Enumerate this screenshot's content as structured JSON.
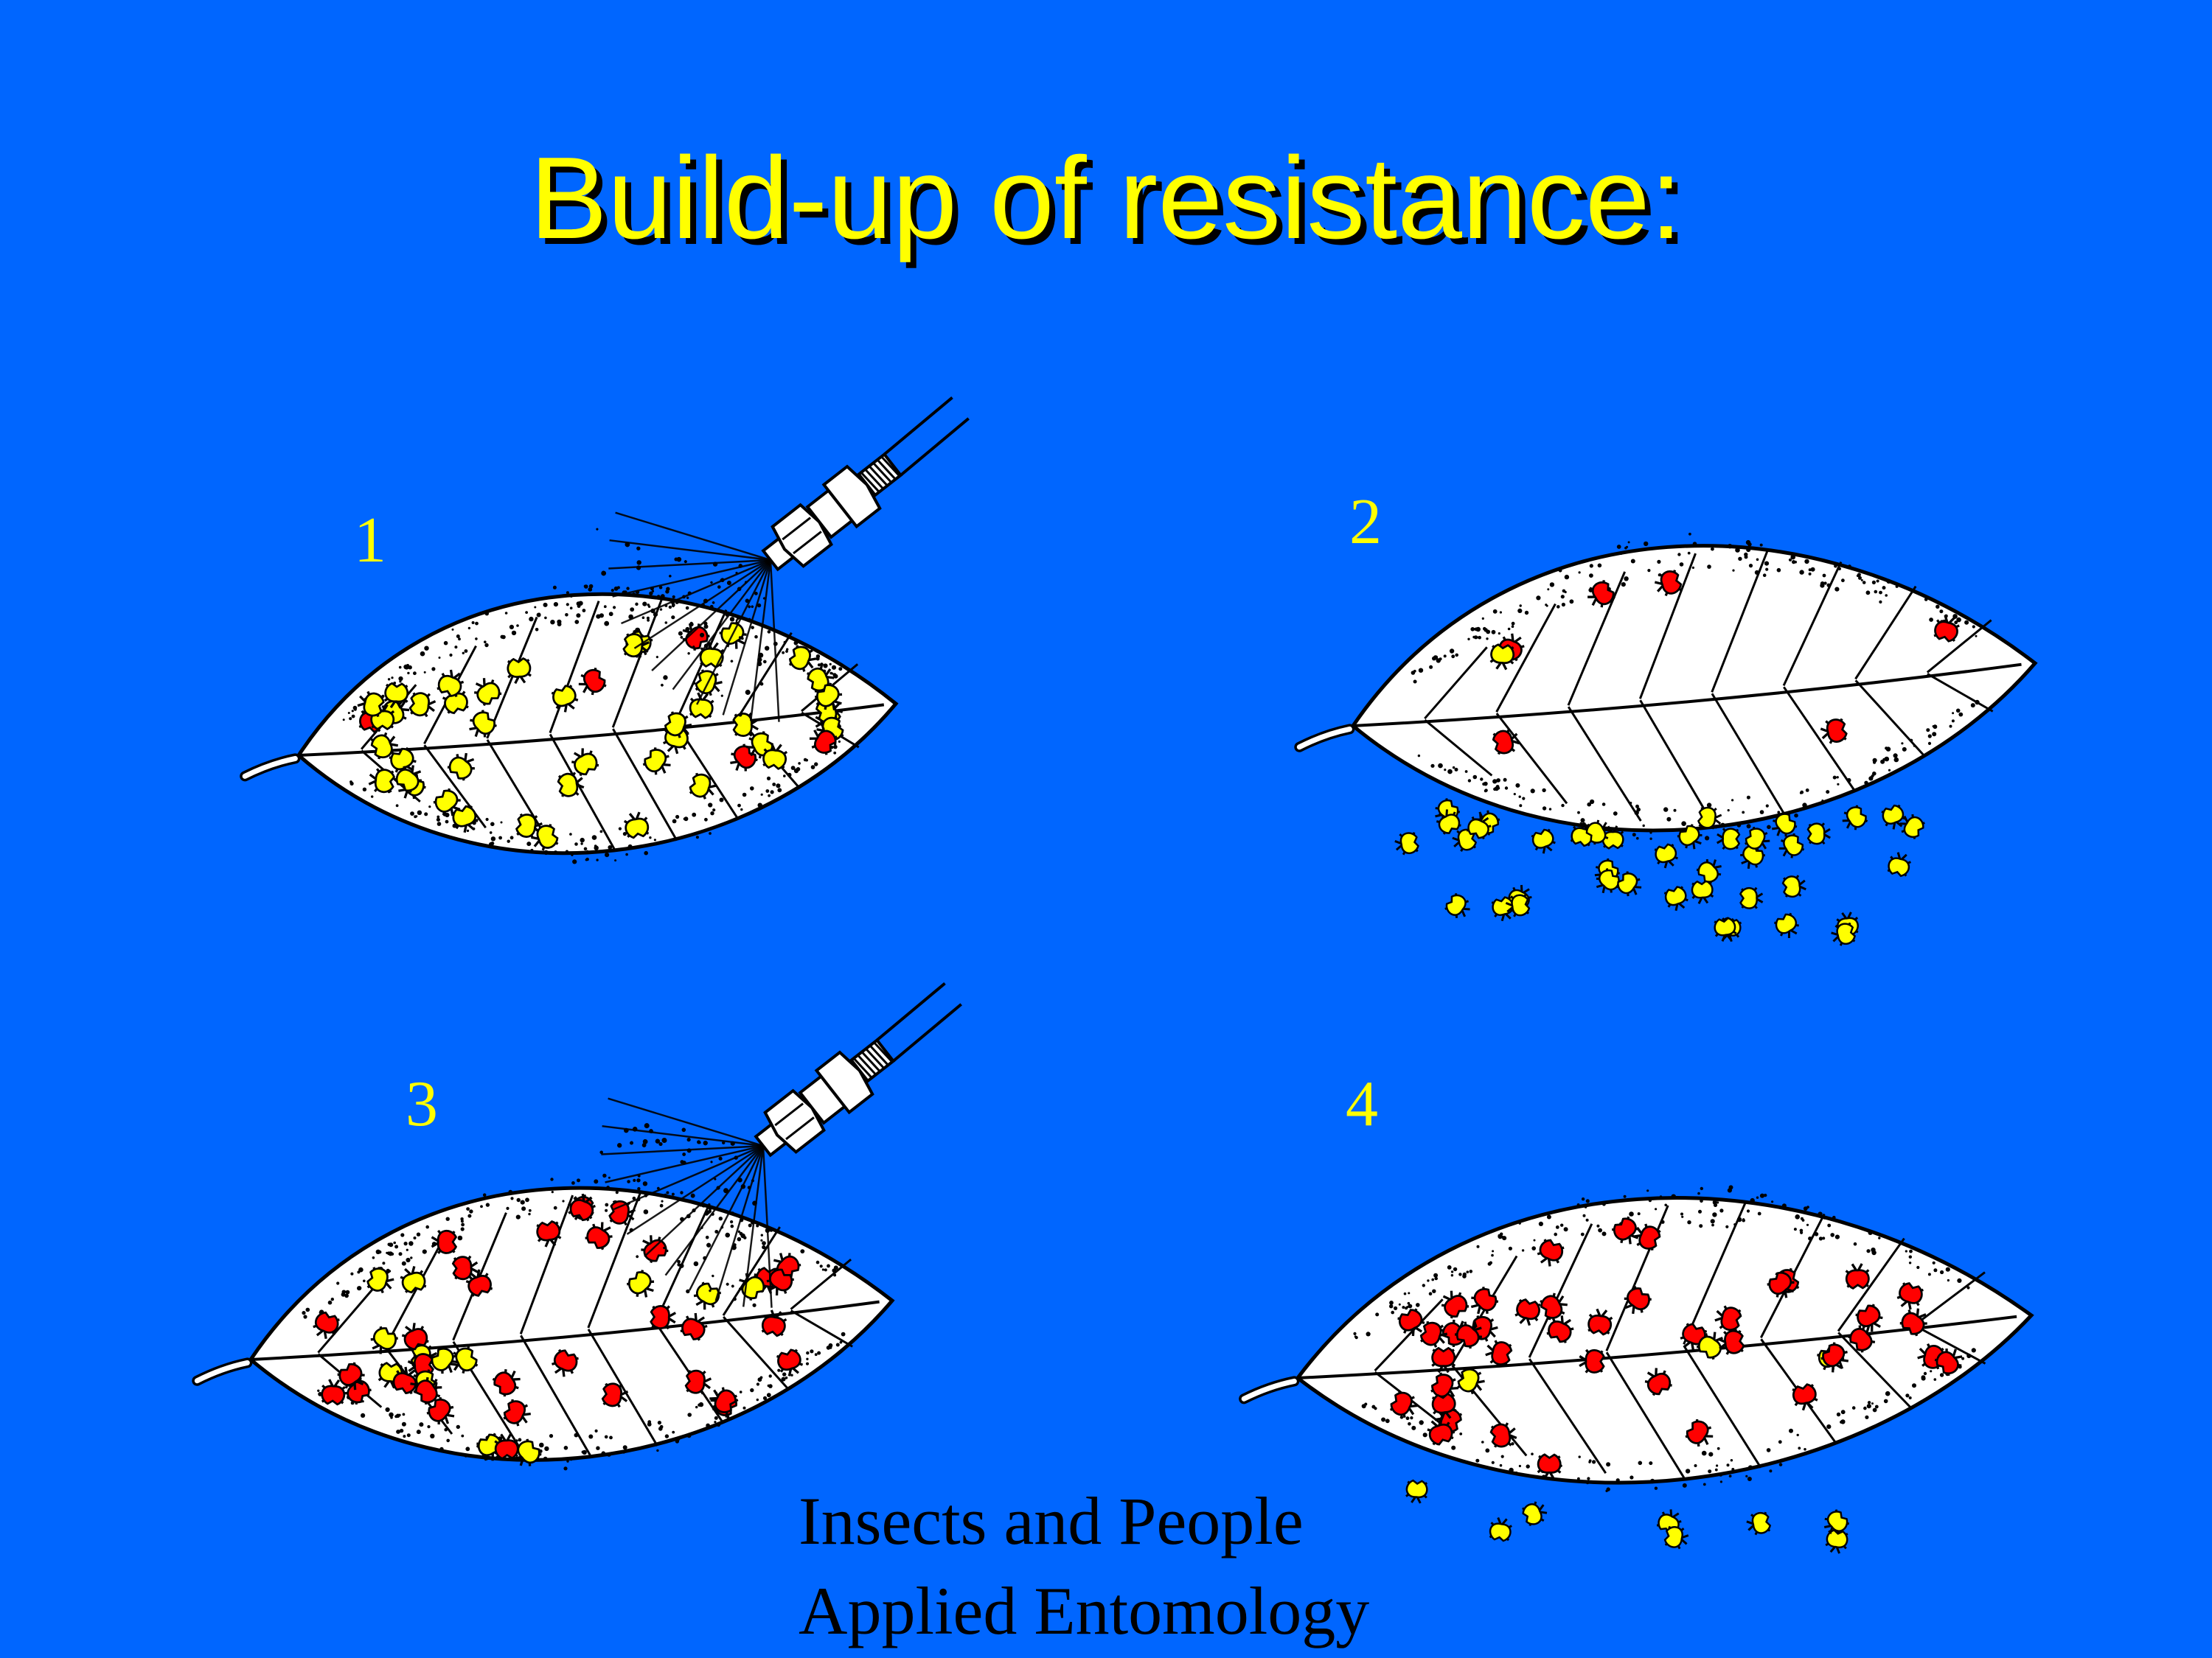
{
  "slide": {
    "title": "Build-up of resistance:",
    "panels": [
      {
        "number": "1",
        "spray": true,
        "state": "sprayed"
      },
      {
        "number": "2",
        "spray": false,
        "state": "survivors"
      },
      {
        "number": "3",
        "spray": true,
        "state": "sprayed"
      },
      {
        "number": "4",
        "spray": false,
        "state": "resistant"
      }
    ],
    "credit": {
      "line1": "Insects and People",
      "line2": "Applied Entomology"
    }
  },
  "colors": {
    "background": "#0066ff",
    "title": "#ffff00",
    "title_shadow": "#000000",
    "leaf": "#ffffff",
    "outline": "#000000",
    "susceptible_insect": "#ffff00",
    "resistant_insect": "#ff0000"
  },
  "icons": {
    "sprayer": "spray-nozzle-icon",
    "insect": "insect-icon",
    "leaf": "leaf-icon"
  }
}
